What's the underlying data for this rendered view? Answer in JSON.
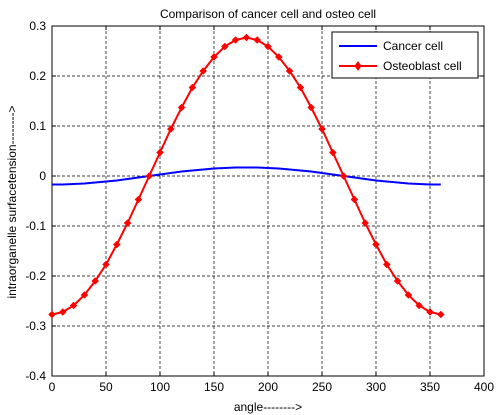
{
  "chart_data": {
    "type": "line",
    "title": "Comparison of cancer cell and osteo cell",
    "xlabel": "angle-------->",
    "ylabel": "intraorganelle surfacetension-------->",
    "xlim": [
      0,
      400
    ],
    "ylim": [
      -0.4,
      0.3
    ],
    "xticks": [
      0,
      50,
      100,
      150,
      200,
      250,
      300,
      350,
      400
    ],
    "yticks": [
      -0.4,
      -0.3,
      -0.2,
      -0.1,
      0,
      0.1,
      0.2,
      0.3
    ],
    "grid": true,
    "legend_position": "top-right",
    "series": [
      {
        "name": "Cancer cell",
        "color": "#0000ff",
        "marker": "none",
        "x": [
          0,
          10,
          20,
          30,
          40,
          50,
          60,
          70,
          80,
          90,
          100,
          110,
          120,
          130,
          140,
          150,
          160,
          170,
          180,
          190,
          200,
          210,
          220,
          230,
          240,
          250,
          260,
          270,
          280,
          290,
          300,
          310,
          320,
          330,
          340,
          350,
          360
        ],
        "y": [
          -0.017,
          -0.017,
          -0.016,
          -0.015,
          -0.013,
          -0.011,
          -0.009,
          -0.006,
          -0.003,
          0.0,
          0.003,
          0.006,
          0.009,
          0.011,
          0.013,
          0.015,
          0.016,
          0.017,
          0.017,
          0.017,
          0.016,
          0.015,
          0.013,
          0.011,
          0.009,
          0.006,
          0.003,
          0.0,
          -0.003,
          -0.006,
          -0.009,
          -0.011,
          -0.013,
          -0.015,
          -0.016,
          -0.017,
          -0.017
        ]
      },
      {
        "name": "Osteoblast cell",
        "color": "#ff0000",
        "marker": "diamond",
        "x": [
          0,
          10,
          20,
          30,
          40,
          50,
          60,
          70,
          80,
          90,
          100,
          110,
          120,
          130,
          140,
          150,
          160,
          170,
          180,
          190,
          200,
          210,
          220,
          230,
          240,
          250,
          260,
          270,
          280,
          290,
          300,
          310,
          320,
          330,
          340,
          350,
          360
        ],
        "y": [
          -0.277,
          -0.272,
          -0.259,
          -0.238,
          -0.21,
          -0.177,
          -0.137,
          -0.094,
          -0.047,
          0.0,
          0.047,
          0.094,
          0.137,
          0.177,
          0.21,
          0.238,
          0.259,
          0.272,
          0.277,
          0.272,
          0.259,
          0.238,
          0.21,
          0.177,
          0.137,
          0.094,
          0.047,
          0.0,
          -0.047,
          -0.094,
          -0.137,
          -0.177,
          -0.21,
          -0.238,
          -0.259,
          -0.272,
          -0.277
        ]
      }
    ]
  }
}
